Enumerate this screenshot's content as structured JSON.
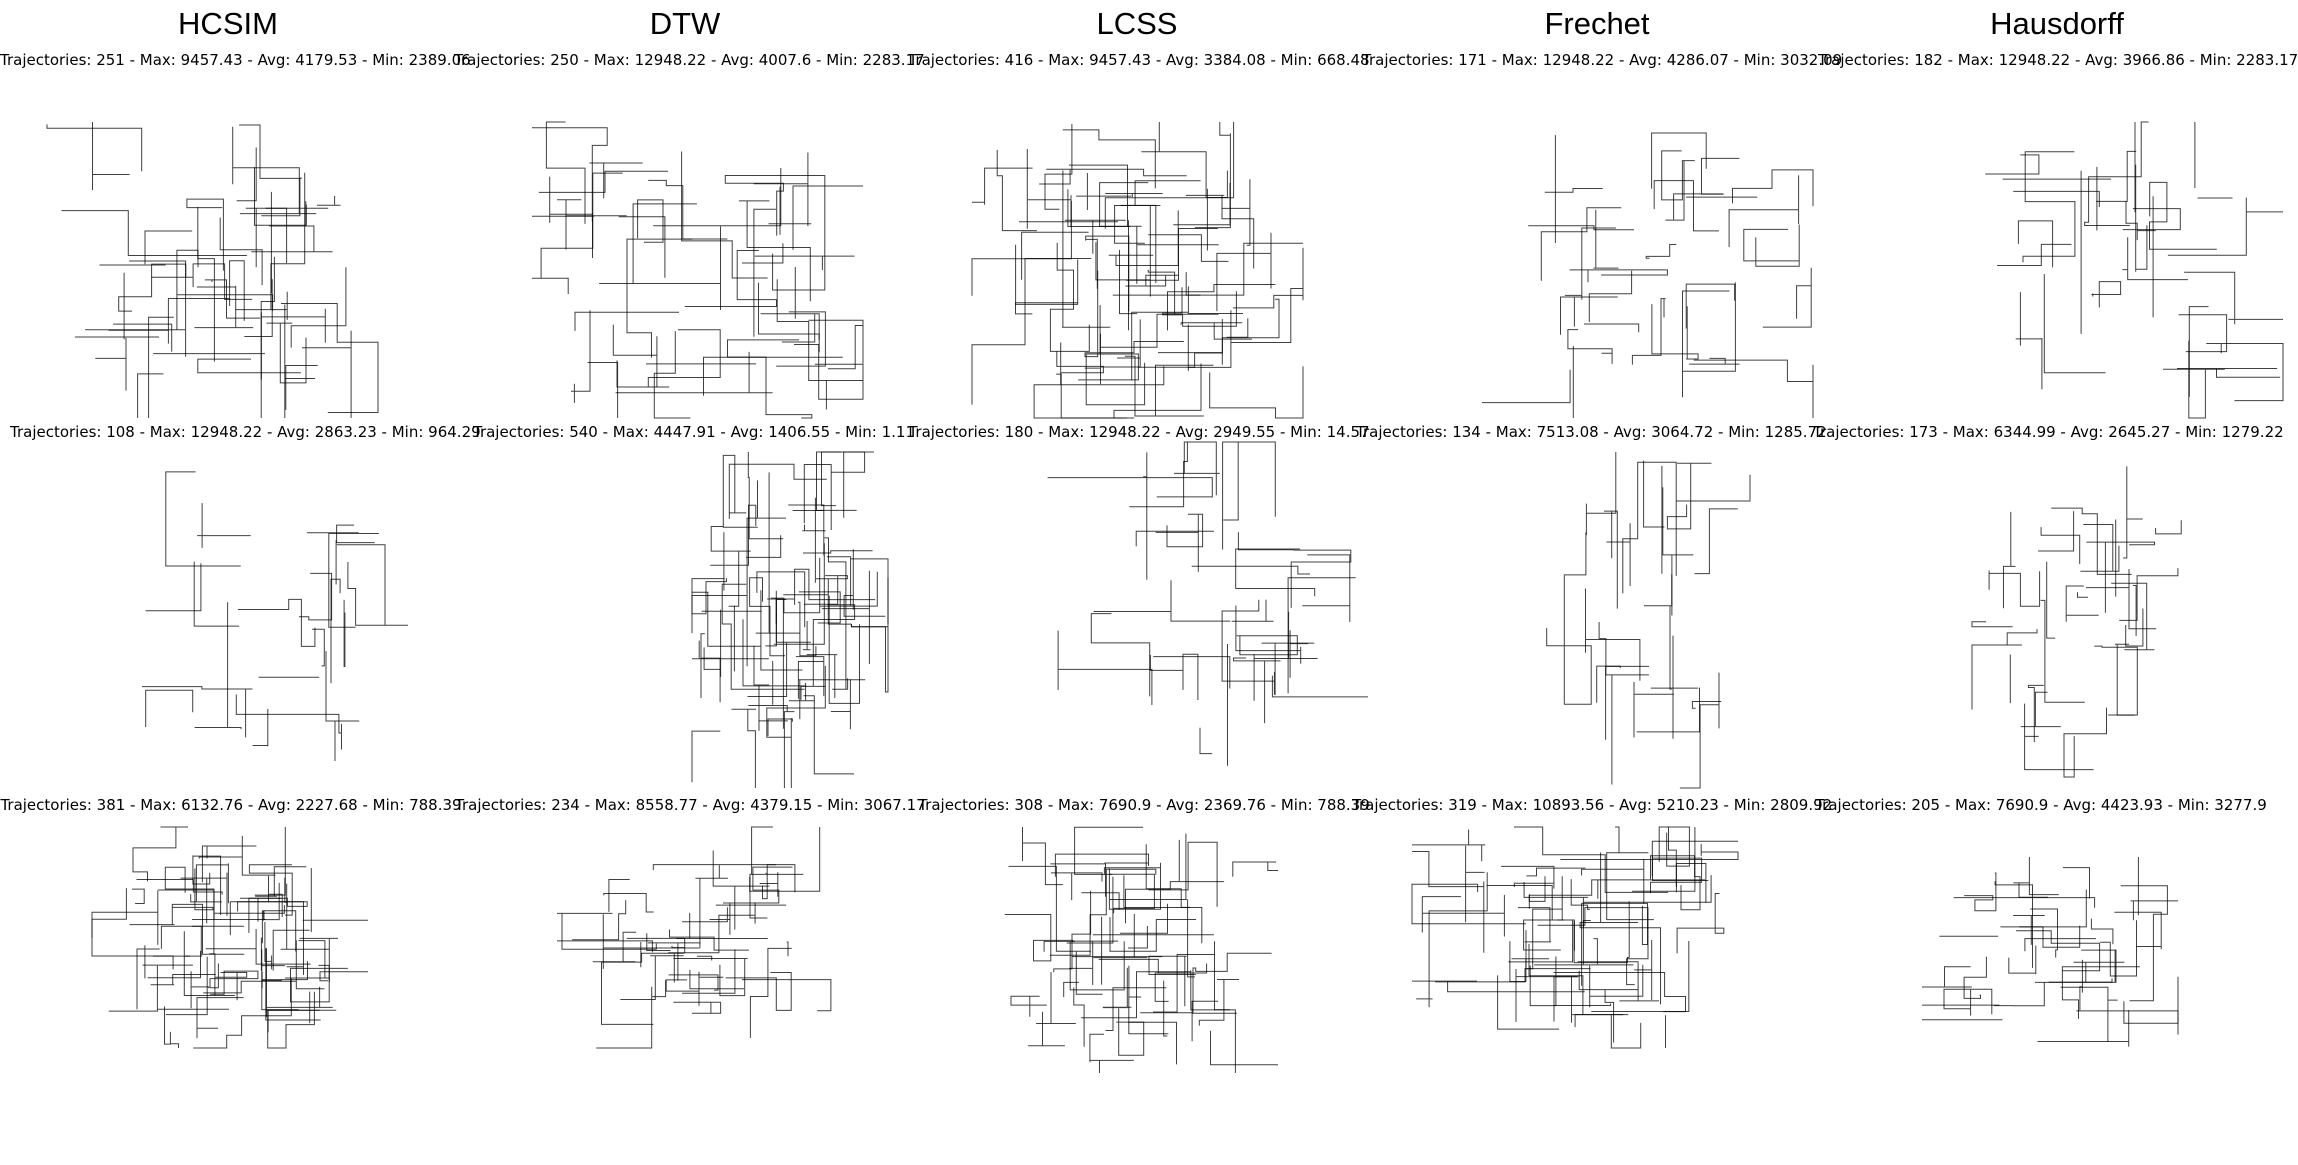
{
  "figure": {
    "columns": [
      "HCSIM",
      "DTW",
      "LCSS",
      "Frechet",
      "Hausdorff"
    ],
    "line_color": "#000000",
    "background": "#ffffff"
  },
  "chart_data": [
    {
      "type": "line",
      "title": "HCSIM",
      "caption": "Trajectories: 251 - Max: 9457.43 - Avg: 4179.53 - Min: 2389.06",
      "trajectory_count": 251,
      "max": 9457.43,
      "avg": 4179.53,
      "min": 2389.06,
      "axes": "off"
    },
    {
      "type": "line",
      "title": "DTW",
      "caption": "Trajectories: 250 - Max: 12948.22 - Avg: 4007.6 - Min: 2283.17",
      "trajectory_count": 250,
      "max": 12948.22,
      "avg": 4007.6,
      "min": 2283.17,
      "axes": "off"
    },
    {
      "type": "line",
      "title": "LCSS",
      "caption": "Trajectories: 416 - Max: 9457.43 - Avg: 3384.08 - Min: 668.48",
      "trajectory_count": 416,
      "max": 9457.43,
      "avg": 3384.08,
      "min": 668.48,
      "axes": "off"
    },
    {
      "type": "line",
      "title": "Frechet",
      "caption": "Trajectories: 171 - Max: 12948.22 - Avg: 4286.07 - Min: 3032.09",
      "trajectory_count": 171,
      "max": 12948.22,
      "avg": 4286.07,
      "min": 3032.09,
      "axes": "off"
    },
    {
      "type": "line",
      "title": "Hausdorff",
      "caption": "Trajectories: 182 - Max: 12948.22 - Avg: 3966.86 - Min: 2283.17",
      "trajectory_count": 182,
      "max": 12948.22,
      "avg": 3966.86,
      "min": 2283.17,
      "axes": "off"
    },
    {
      "type": "line",
      "caption": "Trajectories: 108 - Max: 12948.22 - Avg: 2863.23 - Min: 964.29",
      "trajectory_count": 108,
      "max": 12948.22,
      "avg": 2863.23,
      "min": 964.29,
      "axes": "off"
    },
    {
      "type": "line",
      "caption": "Trajectories: 540 - Max: 4447.91 - Avg: 1406.55 - Min: 1.11",
      "trajectory_count": 540,
      "max": 4447.91,
      "avg": 1406.55,
      "min": 1.11,
      "axes": "off"
    },
    {
      "type": "line",
      "caption": "Trajectories: 180 - Max: 12948.22 - Avg: 2949.55 - Min: 14.57",
      "trajectory_count": 180,
      "max": 12948.22,
      "avg": 2949.55,
      "min": 14.57,
      "axes": "off"
    },
    {
      "type": "line",
      "caption": "Trajectories: 134 - Max: 7513.08 - Avg: 3064.72 - Min: 1285.72",
      "trajectory_count": 134,
      "max": 7513.08,
      "avg": 3064.72,
      "min": 1285.72,
      "axes": "off"
    },
    {
      "type": "line",
      "caption": "Trajectories: 173 - Max: 6344.99 - Avg: 2645.27 - Min: 1279.22",
      "trajectory_count": 173,
      "max": 6344.99,
      "avg": 2645.27,
      "min": 1279.22,
      "axes": "off"
    },
    {
      "type": "line",
      "caption": "Trajectories: 381 - Max: 6132.76 - Avg: 2227.68 - Min: 788.39",
      "trajectory_count": 381,
      "max": 6132.76,
      "avg": 2227.68,
      "min": 788.39,
      "axes": "off"
    },
    {
      "type": "line",
      "caption": "Trajectories: 234 - Max: 8558.77 - Avg: 4379.15 - Min: 3067.17",
      "trajectory_count": 234,
      "max": 8558.77,
      "avg": 4379.15,
      "min": 3067.17,
      "axes": "off"
    },
    {
      "type": "line",
      "caption": "Trajectories: 308 - Max: 7690.9 - Avg: 2369.76 - Min: 788.39",
      "trajectory_count": 308,
      "max": 7690.9,
      "avg": 2369.76,
      "min": 788.39,
      "axes": "off"
    },
    {
      "type": "line",
      "caption": "Trajectories: 319 - Max: 10893.56 - Avg: 5210.23 - Min: 2809.92",
      "trajectory_count": 319,
      "max": 10893.56,
      "avg": 5210.23,
      "min": 2809.92,
      "axes": "off"
    },
    {
      "type": "line",
      "caption": "Trajectories: 205 - Max: 7690.9 - Avg: 4423.93 - Min: 3277.9",
      "trajectory_count": 205,
      "max": 7690.9,
      "avg": 4423.93,
      "min": 3277.9,
      "axes": "off"
    }
  ]
}
